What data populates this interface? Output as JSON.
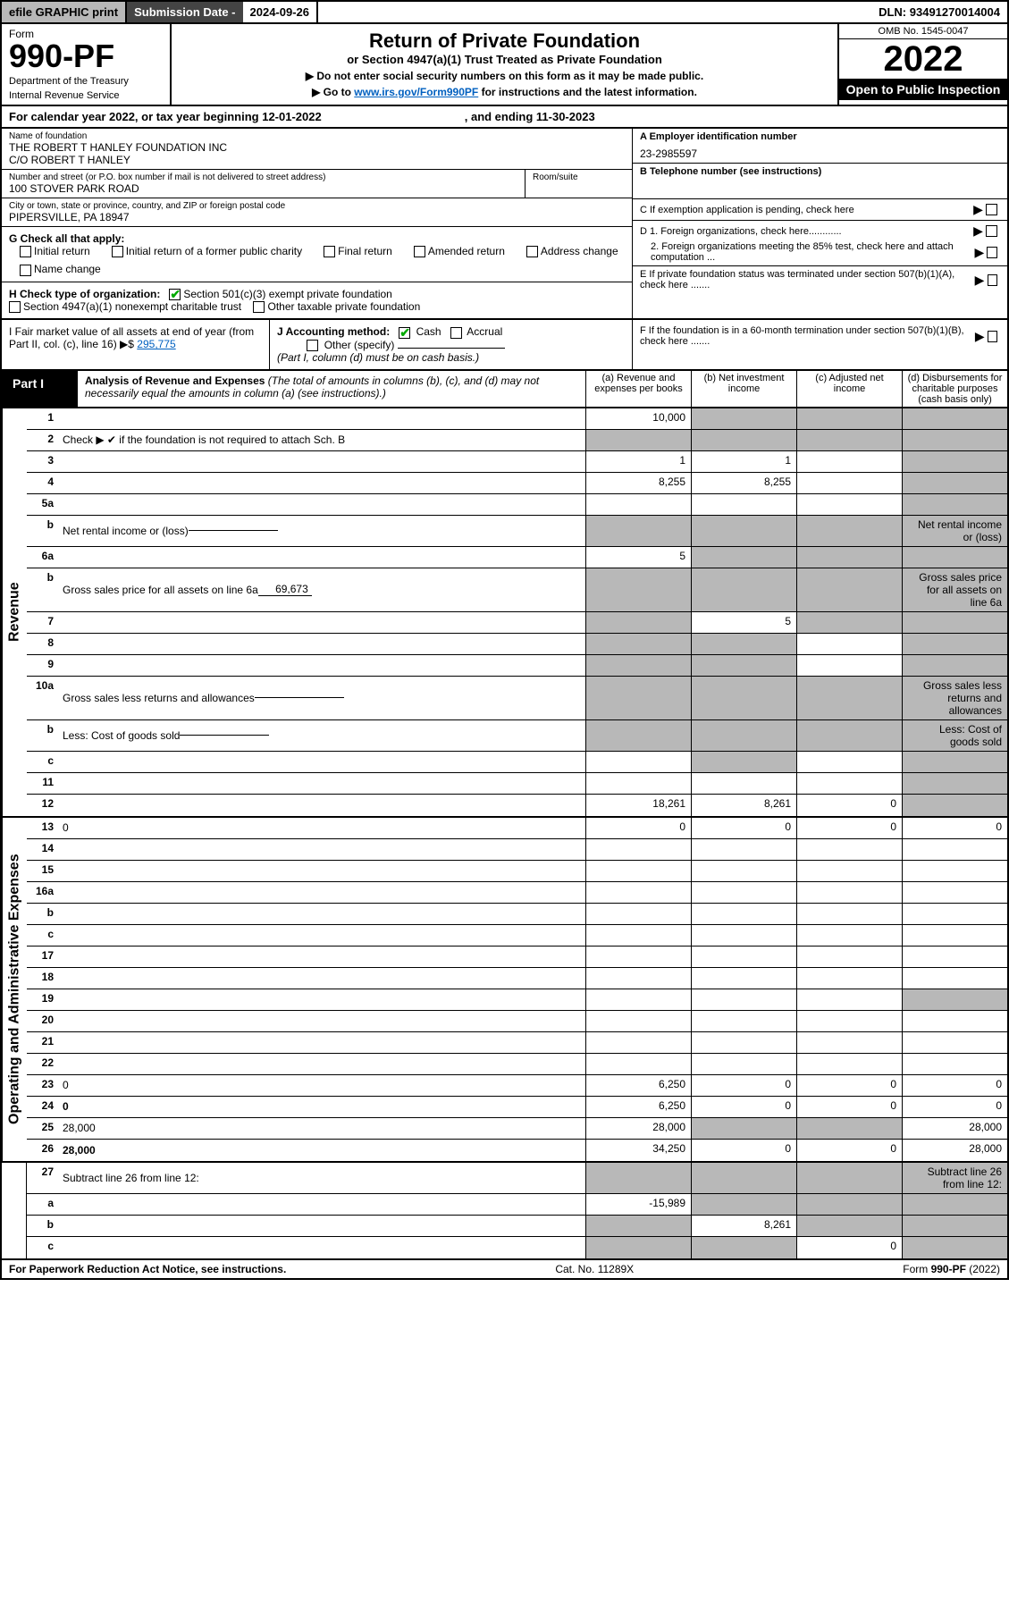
{
  "topbar": {
    "efile": "efile GRAPHIC print",
    "subdate_lbl": "Submission Date - ",
    "subdate": "2024-09-26",
    "dln_lbl": "DLN: ",
    "dln": "93491270014004"
  },
  "header": {
    "form_lbl": "Form",
    "form_num": "990-PF",
    "dept": "Department of the Treasury",
    "irs": "Internal Revenue Service",
    "title": "Return of Private Foundation",
    "subtitle": "or Section 4947(a)(1) Trust Treated as Private Foundation",
    "inst1": "▶ Do not enter social security numbers on this form as it may be made public.",
    "inst2_pre": "▶ Go to ",
    "inst2_link": "www.irs.gov/Form990PF",
    "inst2_post": " for instructions and the latest information.",
    "omb": "OMB No. 1545-0047",
    "year": "2022",
    "open": "Open to Public Inspection"
  },
  "calyear": {
    "text": "For calendar year 2022, or tax year beginning 12-01-2022",
    "ending": ", and ending 11-30-2023"
  },
  "info": {
    "name_lbl": "Name of foundation",
    "name1": "THE ROBERT T HANLEY FOUNDATION INC",
    "name2": "C/O ROBERT T HANLEY",
    "addr_lbl": "Number and street (or P.O. box number if mail is not delivered to street address)",
    "addr": "100 STOVER PARK ROAD",
    "room_lbl": "Room/suite",
    "city_lbl": "City or town, state or province, country, and ZIP or foreign postal code",
    "city": "PIPERSVILLE, PA  18947",
    "a_lbl": "A Employer identification number",
    "a_val": "23-2985597",
    "b_lbl": "B Telephone number (see instructions)",
    "c_lbl": "C If exemption application is pending, check here",
    "d1_lbl": "D 1. Foreign organizations, check here............",
    "d2_lbl": "2. Foreign organizations meeting the 85% test, check here and attach computation ...",
    "e_lbl": "E  If private foundation status was terminated under section 507(b)(1)(A), check here .......",
    "f_lbl": "F  If the foundation is in a 60-month termination under section 507(b)(1)(B), check here ......."
  },
  "g": {
    "lbl": "G Check all that apply:",
    "opts": [
      "Initial return",
      "Initial return of a former public charity",
      "Final return",
      "Amended return",
      "Address change",
      "Name change"
    ]
  },
  "h": {
    "lbl": "H Check type of organization:",
    "opt1": "Section 501(c)(3) exempt private foundation",
    "opt2": "Section 4947(a)(1) nonexempt charitable trust",
    "opt3": "Other taxable private foundation"
  },
  "i": {
    "lbl": "I Fair market value of all assets at end of year (from Part II, col. (c), line 16) ▶$",
    "val": "295,775"
  },
  "j": {
    "lbl": "J Accounting method:",
    "cash": "Cash",
    "accrual": "Accrual",
    "other": "Other (specify)",
    "note": "(Part I, column (d) must be on cash basis.)"
  },
  "part1": {
    "lbl": "Part I",
    "title": "Analysis of Revenue and Expenses",
    "note": "(The total of amounts in columns (b), (c), and (d) may not necessarily equal the amounts in column (a) (see instructions).)",
    "cols": {
      "a": "(a) Revenue and expenses per books",
      "b": "(b) Net investment income",
      "c": "(c) Adjusted net income",
      "d": "(d) Disbursements for charitable purposes (cash basis only)"
    }
  },
  "side": {
    "rev": "Revenue",
    "exp": "Operating and Administrative Expenses"
  },
  "rows": [
    {
      "n": "1",
      "d": "",
      "a": "10,000",
      "b": "",
      "c": "",
      "grey": [
        "b",
        "c",
        "d"
      ]
    },
    {
      "n": "2",
      "d": "Check ▶ ✔ if the foundation is not required to attach Sch. B",
      "nocell": true
    },
    {
      "n": "3",
      "d": "",
      "a": "1",
      "b": "1",
      "c": "",
      "grey": [
        "d"
      ]
    },
    {
      "n": "4",
      "d": "",
      "a": "8,255",
      "b": "8,255",
      "c": "",
      "grey": [
        "d"
      ]
    },
    {
      "n": "5a",
      "d": "",
      "a": "",
      "b": "",
      "c": "",
      "grey": [
        "d"
      ]
    },
    {
      "n": "b",
      "d": "Net rental income or (loss)",
      "short": true,
      "grey": [
        "a",
        "b",
        "c",
        "d"
      ]
    },
    {
      "n": "6a",
      "d": "",
      "a": "5",
      "b": "",
      "c": "",
      "grey": [
        "b",
        "c",
        "d"
      ]
    },
    {
      "n": "b",
      "d": "Gross sales price for all assets on line 6a",
      "inline": "69,673",
      "grey": [
        "a",
        "b",
        "c",
        "d"
      ]
    },
    {
      "n": "7",
      "d": "",
      "a": "",
      "b": "5",
      "c": "",
      "grey": [
        "a",
        "c",
        "d"
      ]
    },
    {
      "n": "8",
      "d": "",
      "a": "",
      "b": "",
      "c": "",
      "grey": [
        "a",
        "b",
        "d"
      ]
    },
    {
      "n": "9",
      "d": "",
      "a": "",
      "b": "",
      "c": "",
      "grey": [
        "a",
        "b",
        "d"
      ]
    },
    {
      "n": "10a",
      "d": "Gross sales less returns and allowances",
      "short": true,
      "grey": [
        "a",
        "b",
        "c",
        "d"
      ]
    },
    {
      "n": "b",
      "d": "Less: Cost of goods sold",
      "short": true,
      "grey": [
        "a",
        "b",
        "c",
        "d"
      ]
    },
    {
      "n": "c",
      "d": "",
      "a": "",
      "b": "",
      "c": "",
      "grey": [
        "b",
        "d"
      ]
    },
    {
      "n": "11",
      "d": "",
      "a": "",
      "b": "",
      "c": "",
      "grey": [
        "d"
      ]
    },
    {
      "n": "12",
      "d": "",
      "bold": true,
      "a": "18,261",
      "b": "8,261",
      "c": "0",
      "grey": [
        "d"
      ]
    }
  ],
  "exp_rows": [
    {
      "n": "13",
      "d": "0",
      "a": "0",
      "b": "0",
      "c": "0"
    },
    {
      "n": "14",
      "d": "",
      "a": "",
      "b": "",
      "c": ""
    },
    {
      "n": "15",
      "d": "",
      "a": "",
      "b": "",
      "c": ""
    },
    {
      "n": "16a",
      "d": "",
      "a": "",
      "b": "",
      "c": ""
    },
    {
      "n": "b",
      "d": "",
      "a": "",
      "b": "",
      "c": ""
    },
    {
      "n": "c",
      "d": "",
      "a": "",
      "b": "",
      "c": ""
    },
    {
      "n": "17",
      "d": "",
      "a": "",
      "b": "",
      "c": ""
    },
    {
      "n": "18",
      "d": "",
      "a": "",
      "b": "",
      "c": ""
    },
    {
      "n": "19",
      "d": "",
      "a": "",
      "b": "",
      "c": "",
      "grey": [
        "d"
      ]
    },
    {
      "n": "20",
      "d": "",
      "a": "",
      "b": "",
      "c": ""
    },
    {
      "n": "21",
      "d": "",
      "a": "",
      "b": "",
      "c": ""
    },
    {
      "n": "22",
      "d": "",
      "a": "",
      "b": "",
      "c": ""
    },
    {
      "n": "23",
      "d": "0",
      "a": "6,250",
      "b": "0",
      "c": "0"
    },
    {
      "n": "24",
      "d": "0",
      "bold": true,
      "a": "6,250",
      "b": "0",
      "c": "0"
    },
    {
      "n": "25",
      "d": "28,000",
      "a": "28,000",
      "b": "",
      "c": "",
      "grey": [
        "b",
        "c"
      ]
    },
    {
      "n": "26",
      "d": "28,000",
      "bold": true,
      "a": "34,250",
      "b": "0",
      "c": "0"
    }
  ],
  "bottom_rows": [
    {
      "n": "27",
      "d": "Subtract line 26 from line 12:",
      "grey": [
        "a",
        "b",
        "c",
        "d"
      ]
    },
    {
      "n": "a",
      "d": "",
      "bold": true,
      "a": "-15,989",
      "b": "",
      "c": "",
      "grey": [
        "b",
        "c",
        "d"
      ]
    },
    {
      "n": "b",
      "d": "",
      "bold": true,
      "a": "",
      "b": "8,261",
      "c": "",
      "grey": [
        "a",
        "c",
        "d"
      ]
    },
    {
      "n": "c",
      "d": "",
      "bold": true,
      "a": "",
      "b": "",
      "c": "0",
      "grey": [
        "a",
        "b",
        "d"
      ]
    }
  ],
  "footer": {
    "left": "For Paperwork Reduction Act Notice, see instructions.",
    "mid": "Cat. No. 11289X",
    "right": "Form 990-PF (2022)"
  },
  "colors": {
    "topbar_grey": "#b8b8b8",
    "topbar_dark": "#444444",
    "link": "#0060c0",
    "cell_grey": "#b8b8b8",
    "check_green": "#00aa00"
  }
}
